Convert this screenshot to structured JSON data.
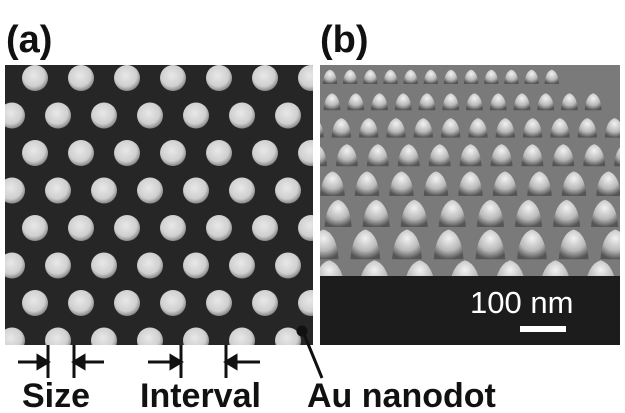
{
  "panels": [
    {
      "label": "(a)"
    },
    {
      "label": "(b)",
      "scale_bar": "100 nm"
    }
  ],
  "annotations": {
    "size": "Size",
    "interval": "Interval",
    "dot": "Au nanodot"
  }
}
